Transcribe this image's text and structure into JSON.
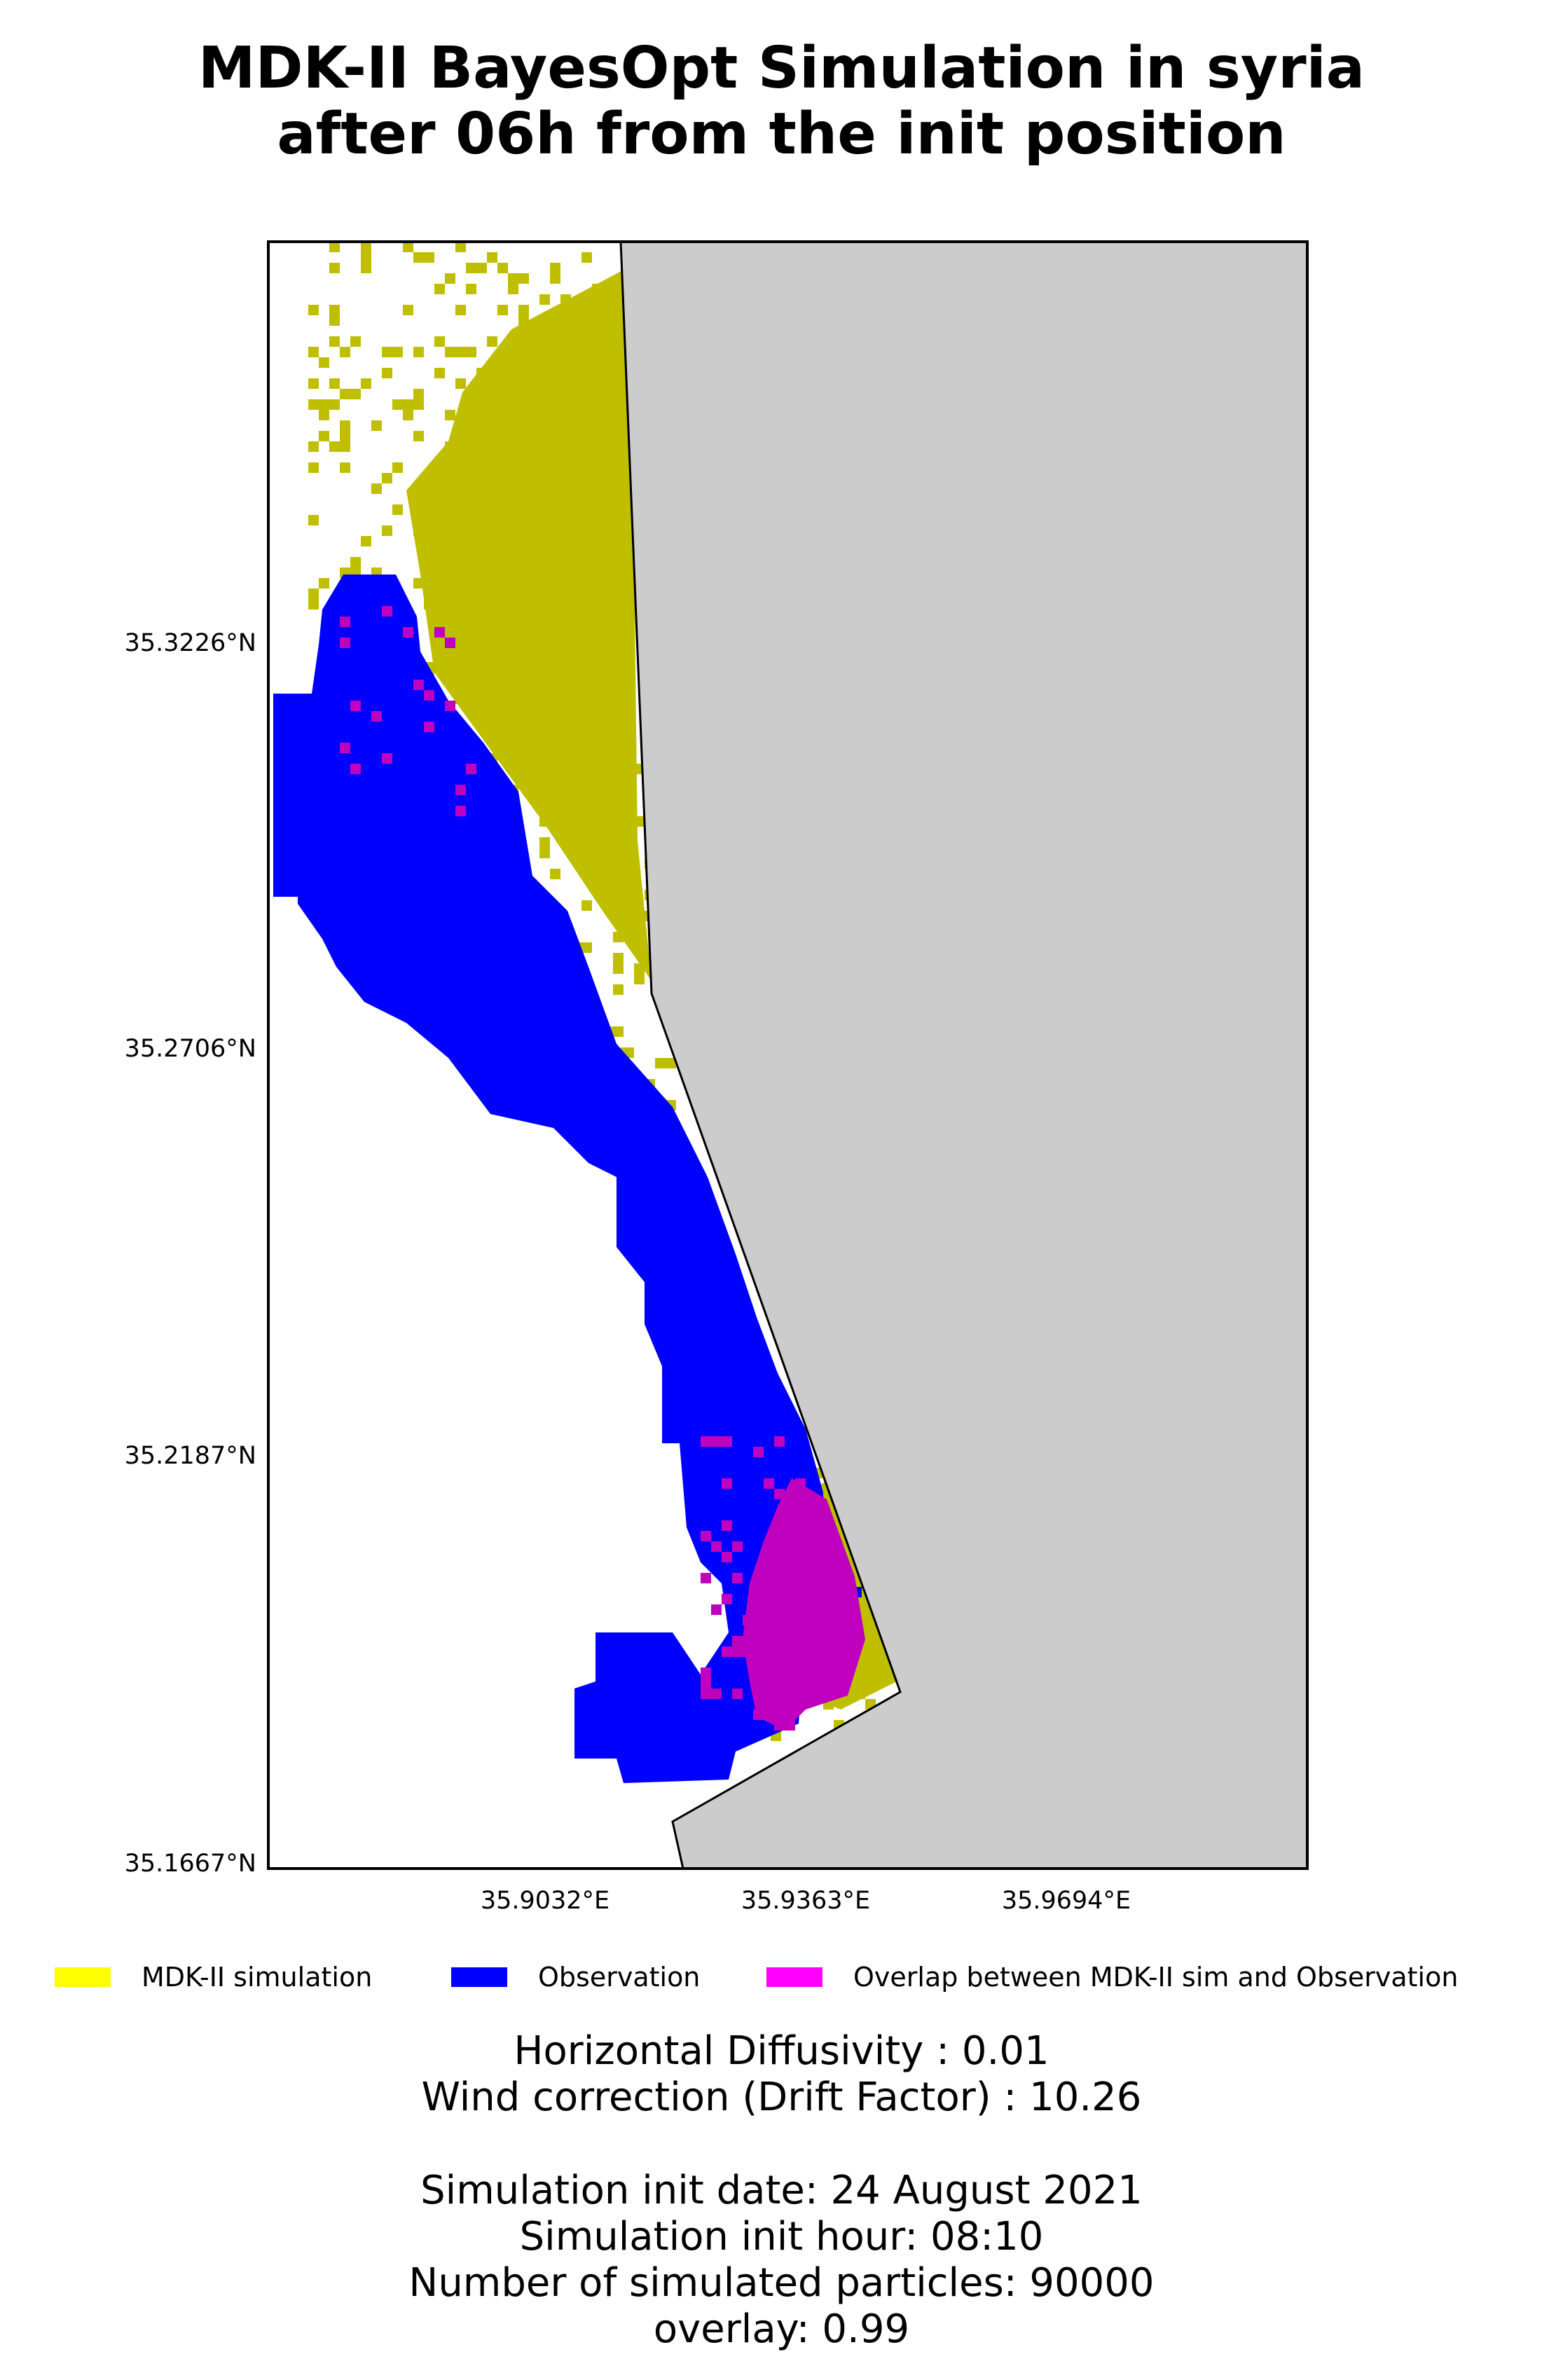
{
  "title": {
    "line1": "MDK-II BayesOpt Simulation in syria",
    "line2": "after 06h from the init position"
  },
  "map": {
    "y_ticks": [
      "35.3226°N",
      "35.2706°N",
      "35.2187°N",
      "35.1667°N"
    ],
    "x_ticks": [
      "35.9032°E",
      "35.9363°E",
      "35.9694°E"
    ],
    "land_color": "#cccccc",
    "coastline_color": "#000000"
  },
  "legend": {
    "items": [
      {
        "label": "MDK-II simulation",
        "color": "#ffff00"
      },
      {
        "label": "Observation",
        "color": "#0000ff"
      },
      {
        "label": "Overlap between MDK-II sim and Observation",
        "color": "#ff00ff"
      }
    ]
  },
  "layer_colors": {
    "simulation": "#bfbf00",
    "observation": "#0000ff",
    "overlap": "#bf00bf"
  },
  "info": {
    "diffusivity": "Horizontal Diffusivity : 0.01",
    "wind_correction": "Wind correction (Drift Factor) : 10.26",
    "init_date": "Simulation init date: 24 August 2021",
    "init_hour": "Simulation init hour: 08:10",
    "particles": "Number of simulated particles: 90000",
    "overlay": "overlay: 0.99"
  }
}
